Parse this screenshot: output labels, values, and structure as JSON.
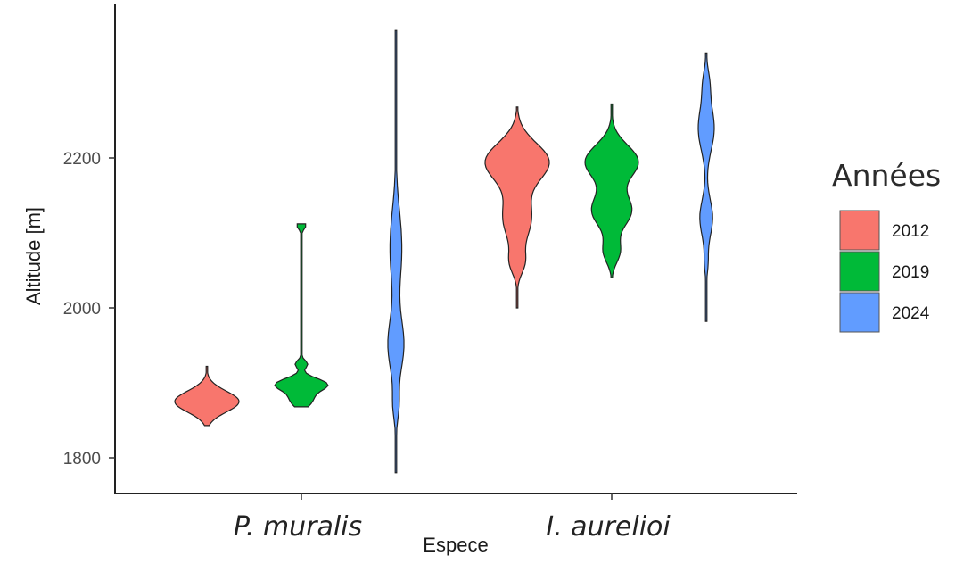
{
  "chart_data": {
    "type": "violin",
    "xlabel": "Espece",
    "ylabel": "Altitude [m]",
    "ylim": [
      1760,
      2380
    ],
    "y_ticks": [
      1800,
      2000,
      2200
    ],
    "categories": [
      "P. muralis",
      "I. aurelioi"
    ],
    "grid": false,
    "legend": {
      "title": "Années",
      "position": "right",
      "entries": [
        "2012",
        "2019",
        "2024"
      ]
    },
    "series": [
      {
        "name": "2012",
        "color": "#F8766D",
        "groups": [
          {
            "category": "P. muralis",
            "min": 1843,
            "max": 1922,
            "max_density_altitude": 1875
          },
          {
            "category": "I. aurelioi",
            "min": 2000,
            "max": 2268,
            "max_density_altitude": 2190
          }
        ]
      },
      {
        "name": "2019",
        "color": "#00BA38",
        "groups": [
          {
            "category": "P. muralis",
            "min": 1868,
            "max": 2112,
            "max_density_altitude": 1898
          },
          {
            "category": "I. aurelioi",
            "min": 2040,
            "max": 2272,
            "max_density_altitude": 2190
          }
        ]
      },
      {
        "name": "2024",
        "color": "#619CFF",
        "groups": [
          {
            "category": "P. muralis",
            "min": 1780,
            "max": 2370,
            "max_density_altitude": 1950
          },
          {
            "category": "I. aurelioi",
            "min": 1982,
            "max": 2340,
            "max_density_altitude": 2230
          }
        ]
      }
    ]
  }
}
